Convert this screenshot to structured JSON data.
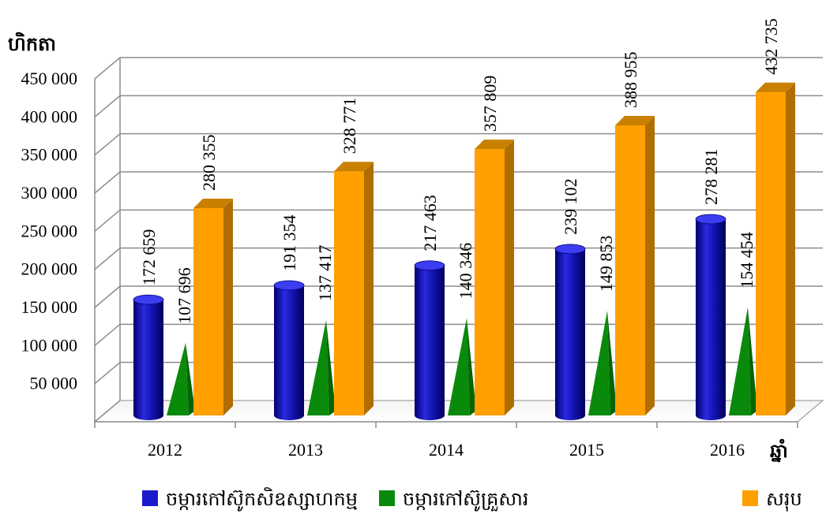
{
  "chart_data": {
    "type": "bar",
    "ylabel": "ហិកតា",
    "xlabel": "ឆ្នាំ",
    "categories": [
      "2012",
      "2013",
      "2014",
      "2015",
      "2016"
    ],
    "ylim": [
      0,
      450000
    ],
    "y_ticks": [
      "50 000",
      "100 000",
      "150 000",
      "200 000",
      "250 000",
      "300 000",
      "350 000",
      "400 000",
      "450 000"
    ],
    "y_tick_values": [
      50000,
      100000,
      150000,
      200000,
      250000,
      300000,
      350000,
      400000,
      450000
    ],
    "grid": true,
    "legend_position": "bottom",
    "series": [
      {
        "name": "ចម្ការកៅស៊ូកសិឧស្សាហកម្ម",
        "shape": "cylinder",
        "color": "#1a1acc",
        "values": [
          172659,
          191354,
          217463,
          239102,
          278281
        ],
        "labels": [
          "172 659",
          "191 354",
          "217 463",
          "239 102",
          "278 281"
        ]
      },
      {
        "name": "ចម្ការកៅស៊ូគ្រួសារ",
        "shape": "pyramid",
        "color": "#0a8a0a",
        "values": [
          107696,
          137417,
          140346,
          149853,
          154454
        ],
        "labels": [
          "107 696",
          "137 417",
          "140 346",
          "149 853",
          "154 454"
        ]
      },
      {
        "name": "សរុប",
        "shape": "box",
        "color": "#ff9f00",
        "values": [
          280355,
          328771,
          357809,
          388955,
          432735
        ],
        "labels": [
          "280 355",
          "328 771",
          "357 809",
          "388 955",
          "432 735"
        ]
      }
    ]
  }
}
